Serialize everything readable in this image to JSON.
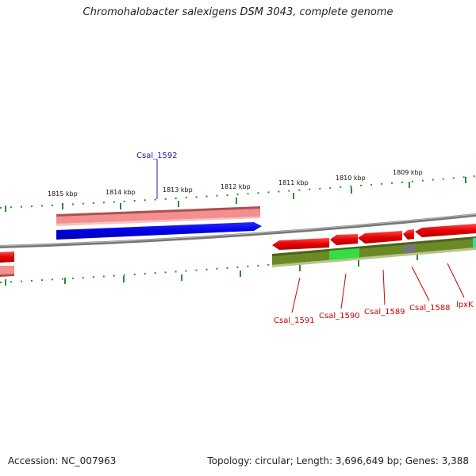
{
  "title": "Chromohalobacter salexigens DSM 3043, complete genome",
  "footer": {
    "accession": "Accession: NC_007963",
    "topology": "Topology: circular; Length: 3,696,649 bp; Genes: 3,388"
  },
  "scale_labels": [
    "1815 kbp",
    "1814 kbp",
    "1813 kbp",
    "1812 kbp",
    "1811 kbp",
    "1810 kbp",
    "1809 kbp"
  ],
  "gene_labels": {
    "forward": [
      "Csal_1592"
    ],
    "reverse": [
      "Csal_1591",
      "Csal_1590",
      "Csal_1589",
      "Csal_1588",
      "lpxK"
    ]
  },
  "colors": {
    "backbone": "#888888",
    "forward_cds": "#0000ee",
    "forward_label": "#1a1aa8",
    "reverse_cds": "#ee0000",
    "reverse_label": "#cc0000",
    "track_highlight": "#f08888",
    "track_green": "#6b8a25",
    "track_bright_green": "#33dd44",
    "track_gray": "#777777",
    "tick": "#228822"
  }
}
